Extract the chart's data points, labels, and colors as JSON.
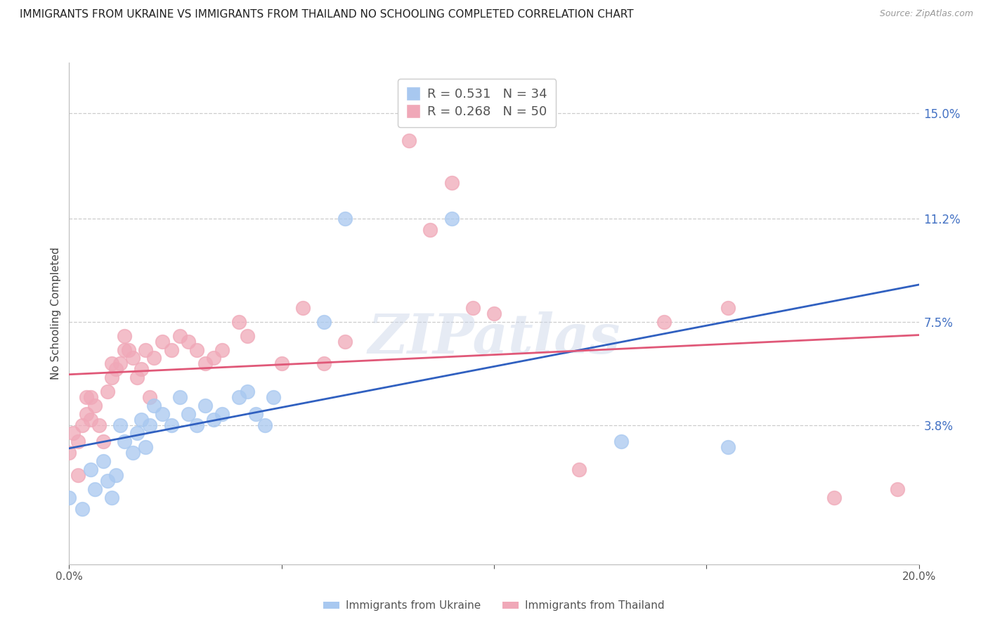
{
  "title": "IMMIGRANTS FROM UKRAINE VS IMMIGRANTS FROM THAILAND NO SCHOOLING COMPLETED CORRELATION CHART",
  "source": "Source: ZipAtlas.com",
  "ylabel": "No Schooling Completed",
  "ytick_labels": [
    "15.0%",
    "11.2%",
    "7.5%",
    "3.8%"
  ],
  "ytick_vals": [
    0.15,
    0.112,
    0.075,
    0.038
  ],
  "xlim": [
    0.0,
    0.2
  ],
  "ylim": [
    -0.012,
    0.168
  ],
  "legend_r_ukraine": "R = 0.531",
  "legend_n_ukraine": "N = 34",
  "legend_r_thailand": "R = 0.268",
  "legend_n_thailand": "N = 50",
  "ukraine_color": "#a8c8f0",
  "thailand_color": "#f0a8b8",
  "ukraine_line_color": "#3060c0",
  "thailand_line_color": "#e05878",
  "title_color": "#222222",
  "source_color": "#999999",
  "right_axis_color": "#4472c4",
  "watermark": "ZIPatlas",
  "ukraine_x": [
    0.0,
    0.003,
    0.005,
    0.006,
    0.008,
    0.009,
    0.01,
    0.011,
    0.012,
    0.013,
    0.015,
    0.016,
    0.017,
    0.018,
    0.019,
    0.02,
    0.022,
    0.024,
    0.026,
    0.028,
    0.03,
    0.032,
    0.034,
    0.036,
    0.04,
    0.042,
    0.044,
    0.046,
    0.048,
    0.06,
    0.065,
    0.09,
    0.13,
    0.155
  ],
  "ukraine_y": [
    0.012,
    0.008,
    0.022,
    0.015,
    0.025,
    0.018,
    0.012,
    0.02,
    0.038,
    0.032,
    0.028,
    0.035,
    0.04,
    0.03,
    0.038,
    0.045,
    0.042,
    0.038,
    0.048,
    0.042,
    0.038,
    0.045,
    0.04,
    0.042,
    0.048,
    0.05,
    0.042,
    0.038,
    0.048,
    0.075,
    0.112,
    0.112,
    0.032,
    0.03
  ],
  "thailand_x": [
    0.0,
    0.001,
    0.002,
    0.002,
    0.003,
    0.004,
    0.004,
    0.005,
    0.005,
    0.006,
    0.007,
    0.008,
    0.009,
    0.01,
    0.01,
    0.011,
    0.012,
    0.013,
    0.013,
    0.014,
    0.015,
    0.016,
    0.017,
    0.018,
    0.019,
    0.02,
    0.022,
    0.024,
    0.026,
    0.028,
    0.03,
    0.032,
    0.034,
    0.036,
    0.04,
    0.042,
    0.05,
    0.055,
    0.06,
    0.065,
    0.08,
    0.085,
    0.09,
    0.095,
    0.1,
    0.12,
    0.14,
    0.155,
    0.18,
    0.195
  ],
  "thailand_y": [
    0.028,
    0.035,
    0.02,
    0.032,
    0.038,
    0.042,
    0.048,
    0.04,
    0.048,
    0.045,
    0.038,
    0.032,
    0.05,
    0.055,
    0.06,
    0.058,
    0.06,
    0.065,
    0.07,
    0.065,
    0.062,
    0.055,
    0.058,
    0.065,
    0.048,
    0.062,
    0.068,
    0.065,
    0.07,
    0.068,
    0.065,
    0.06,
    0.062,
    0.065,
    0.075,
    0.07,
    0.06,
    0.08,
    0.06,
    0.068,
    0.14,
    0.108,
    0.125,
    0.08,
    0.078,
    0.022,
    0.075,
    0.08,
    0.012,
    0.015
  ],
  "xtick_positions": [
    0.0,
    0.05,
    0.1,
    0.15,
    0.2
  ],
  "xtick_labels": [
    "0.0%",
    "",
    "",
    "",
    "20.0%"
  ]
}
